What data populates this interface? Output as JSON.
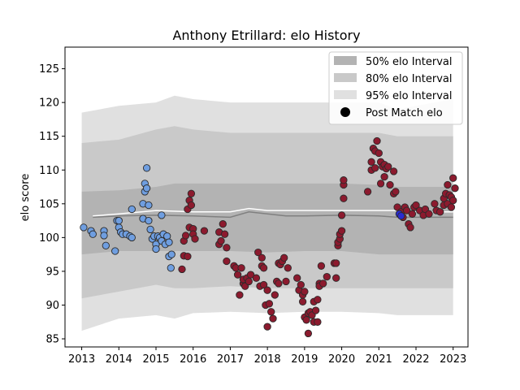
{
  "chart_data": {
    "type": "scatter",
    "title": "Anthony Etrillard: elo History",
    "xlabel": "",
    "ylabel": "elo score",
    "xlim": [
      2012.55,
      2023.4
    ],
    "ylim": [
      83.8,
      128.2
    ],
    "x_ticks": [
      "2013",
      "2014",
      "2015",
      "2016",
      "2017",
      "2018",
      "2019",
      "2020",
      "2021",
      "2022",
      "2023"
    ],
    "y_ticks": [
      "85",
      "90",
      "95",
      "100",
      "105",
      "110",
      "115",
      "120",
      "125"
    ],
    "legend_position": "top-right",
    "legend": [
      {
        "label": "50% elo Interval",
        "color": "#b3b3b3",
        "kind": "patch"
      },
      {
        "label": "80% elo Interval",
        "color": "#c9c9c9",
        "kind": "patch"
      },
      {
        "label": "95% elo Interval",
        "color": "#e0e0e0",
        "kind": "patch"
      },
      {
        "label": "Post Match elo",
        "color": "#000000",
        "kind": "marker"
      }
    ],
    "colors": {
      "early_points": "#6f9ee0",
      "later_points": "#8c1a2e",
      "recent_points": "#2a2ad0",
      "mean_line": "#808080",
      "median_line": "#ffffff"
    },
    "bands": {
      "x": [
        2013.0,
        2014.0,
        2015.0,
        2015.5,
        2016.0,
        2017.0,
        2018.0,
        2019.0,
        2020.0,
        2021.0,
        2021.5,
        2022.0,
        2023.0
      ],
      "band95": {
        "lower": [
          86.2,
          88.0,
          88.5,
          88.0,
          88.8,
          89.0,
          88.8,
          89.0,
          89.0,
          88.8,
          88.5,
          88.5,
          88.5
        ],
        "upper": [
          118.5,
          119.5,
          120.0,
          121.0,
          120.5,
          120.0,
          120.0,
          120.0,
          120.0,
          120.0,
          119.0,
          119.5,
          120.5
        ]
      },
      "band80": {
        "lower": [
          91.0,
          92.0,
          93.0,
          92.5,
          92.5,
          92.8,
          92.5,
          92.5,
          92.5,
          92.5,
          92.5,
          92.5,
          92.5
        ],
        "upper": [
          114.0,
          114.5,
          116.0,
          116.5,
          116.0,
          115.5,
          115.5,
          115.5,
          115.5,
          115.5,
          115.0,
          115.0,
          115.0
        ]
      },
      "band50": {
        "lower": [
          97.5,
          98.0,
          98.0,
          98.0,
          98.0,
          98.0,
          97.8,
          98.0,
          98.0,
          97.5,
          97.5,
          97.5,
          97.5
        ],
        "upper": [
          106.8,
          107.0,
          107.5,
          108.0,
          108.0,
          108.0,
          108.0,
          108.0,
          108.0,
          107.8,
          107.5,
          107.5,
          107.5
        ]
      }
    },
    "mean_line": {
      "x": [
        2013.3,
        2014.0,
        2015.0,
        2016.0,
        2017.0,
        2017.5,
        2018.0,
        2018.5,
        2019.0,
        2020.0,
        2021.0,
        2021.5,
        2022.0,
        2023.0
      ],
      "y": [
        103.0,
        103.2,
        103.3,
        103.2,
        103.0,
        103.8,
        103.5,
        103.2,
        103.2,
        103.3,
        103.2,
        103.0,
        103.0,
        103.0
      ]
    },
    "median_line": {
      "x": [
        2013.3,
        2014.0,
        2015.0,
        2016.0,
        2017.0,
        2017.5,
        2018.0,
        2019.0,
        2020.0,
        2021.0,
        2021.5,
        2022.0,
        2023.0
      ],
      "y": [
        103.2,
        103.5,
        104.0,
        103.8,
        103.8,
        104.3,
        104.0,
        104.0,
        104.0,
        104.0,
        104.0,
        103.8,
        103.8
      ]
    },
    "series": [
      {
        "group": "early",
        "points": [
          [
            2013.05,
            101.5
          ],
          [
            2013.25,
            101.0
          ],
          [
            2013.3,
            100.5
          ],
          [
            2013.6,
            101.0
          ],
          [
            2013.6,
            100.3
          ],
          [
            2013.65,
            98.8
          ],
          [
            2013.9,
            98.0
          ],
          [
            2013.95,
            102.5
          ],
          [
            2014.0,
            101.5
          ],
          [
            2014.0,
            102.5
          ],
          [
            2014.05,
            100.8
          ],
          [
            2014.1,
            100.5
          ],
          [
            2014.2,
            100.5
          ],
          [
            2014.3,
            100.2
          ],
          [
            2014.35,
            104.2
          ],
          [
            2014.35,
            100.0
          ],
          [
            2014.65,
            102.8
          ],
          [
            2014.65,
            105.0
          ],
          [
            2014.7,
            106.8
          ],
          [
            2014.7,
            108.0
          ],
          [
            2014.75,
            107.3
          ],
          [
            2014.75,
            110.3
          ],
          [
            2014.8,
            102.5
          ],
          [
            2014.8,
            104.8
          ],
          [
            2014.85,
            101.2
          ],
          [
            2014.9,
            99.8
          ],
          [
            2014.95,
            100.2
          ],
          [
            2015.0,
            99.0
          ],
          [
            2015.0,
            98.3
          ],
          [
            2015.05,
            100.2
          ],
          [
            2015.1,
            100.0
          ],
          [
            2015.15,
            99.5
          ],
          [
            2015.15,
            103.3
          ],
          [
            2015.2,
            100.5
          ],
          [
            2015.25,
            99.0
          ],
          [
            2015.3,
            100.2
          ],
          [
            2015.35,
            99.3
          ],
          [
            2015.35,
            97.2
          ],
          [
            2015.4,
            95.5
          ],
          [
            2015.42,
            97.5
          ]
        ]
      },
      {
        "group": "later",
        "points": [
          [
            2015.7,
            95.3
          ],
          [
            2015.75,
            97.3
          ],
          [
            2015.75,
            99.5
          ],
          [
            2015.8,
            100.3
          ],
          [
            2015.85,
            97.2
          ],
          [
            2015.85,
            104.2
          ],
          [
            2015.9,
            101.5
          ],
          [
            2015.9,
            105.5
          ],
          [
            2015.95,
            106.5
          ],
          [
            2015.95,
            104.8
          ],
          [
            2016.0,
            101.3
          ],
          [
            2016.0,
            100.5
          ],
          [
            2016.05,
            99.8
          ],
          [
            2016.3,
            101.0
          ],
          [
            2016.7,
            100.8
          ],
          [
            2016.7,
            99.0
          ],
          [
            2016.75,
            99.5
          ],
          [
            2016.8,
            102.0
          ],
          [
            2016.85,
            100.5
          ],
          [
            2016.9,
            98.5
          ],
          [
            2016.9,
            96.5
          ],
          [
            2017.1,
            95.8
          ],
          [
            2017.15,
            95.5
          ],
          [
            2017.2,
            94.5
          ],
          [
            2017.25,
            91.5
          ],
          [
            2017.3,
            95.5
          ],
          [
            2017.35,
            93.2
          ],
          [
            2017.35,
            93.8
          ],
          [
            2017.4,
            92.8
          ],
          [
            2017.45,
            94.0
          ],
          [
            2017.5,
            93.5
          ],
          [
            2017.55,
            94.5
          ],
          [
            2017.7,
            94.0
          ],
          [
            2017.75,
            97.8
          ],
          [
            2017.8,
            92.8
          ],
          [
            2017.85,
            97.0
          ],
          [
            2017.85,
            95.8
          ],
          [
            2017.9,
            95.5
          ],
          [
            2017.9,
            93.0
          ],
          [
            2017.95,
            90.0
          ],
          [
            2018.0,
            86.8
          ],
          [
            2018.0,
            92.2
          ],
          [
            2018.05,
            90.2
          ],
          [
            2018.1,
            89.0
          ],
          [
            2018.15,
            88.0
          ],
          [
            2018.2,
            91.5
          ],
          [
            2018.25,
            93.5
          ],
          [
            2018.3,
            96.2
          ],
          [
            2018.3,
            93.2
          ],
          [
            2018.35,
            96.0
          ],
          [
            2018.4,
            96.5
          ],
          [
            2018.45,
            97.0
          ],
          [
            2018.5,
            93.5
          ],
          [
            2018.55,
            95.5
          ],
          [
            2018.8,
            94.0
          ],
          [
            2018.85,
            92.2
          ],
          [
            2018.9,
            93.0
          ],
          [
            2018.95,
            90.5
          ],
          [
            2018.95,
            91.5
          ],
          [
            2019.0,
            92.0
          ],
          [
            2019.0,
            88.2
          ],
          [
            2019.05,
            87.8
          ],
          [
            2019.1,
            85.8
          ],
          [
            2019.1,
            88.8
          ],
          [
            2019.15,
            89.0
          ],
          [
            2019.2,
            88.5
          ],
          [
            2019.25,
            90.5
          ],
          [
            2019.25,
            87.5
          ],
          [
            2019.3,
            89.2
          ],
          [
            2019.35,
            90.8
          ],
          [
            2019.35,
            87.5
          ],
          [
            2019.4,
            93.2
          ],
          [
            2019.4,
            92.8
          ],
          [
            2019.45,
            95.8
          ],
          [
            2019.5,
            93.2
          ],
          [
            2019.6,
            94.2
          ],
          [
            2019.8,
            96.2
          ],
          [
            2019.85,
            94.0
          ],
          [
            2019.85,
            96.2
          ],
          [
            2019.9,
            98.8
          ],
          [
            2019.9,
            99.3
          ],
          [
            2019.95,
            99.8
          ],
          [
            2019.95,
            100.5
          ],
          [
            2020.0,
            101.0
          ],
          [
            2020.0,
            103.3
          ],
          [
            2020.05,
            105.8
          ],
          [
            2020.05,
            107.8
          ],
          [
            2020.05,
            108.5
          ],
          [
            2020.7,
            106.8
          ],
          [
            2020.8,
            110.0
          ],
          [
            2020.8,
            111.2
          ],
          [
            2020.85,
            113.2
          ],
          [
            2020.9,
            112.8
          ],
          [
            2020.9,
            110.3
          ],
          [
            2020.95,
            114.3
          ],
          [
            2021.0,
            112.5
          ],
          [
            2021.05,
            111.2
          ],
          [
            2021.05,
            108.0
          ],
          [
            2021.1,
            110.5
          ],
          [
            2021.15,
            110.8
          ],
          [
            2021.15,
            109.0
          ],
          [
            2021.2,
            110.2
          ],
          [
            2021.25,
            110.5
          ],
          [
            2021.3,
            107.8
          ],
          [
            2021.4,
            109.8
          ],
          [
            2021.4,
            106.5
          ],
          [
            2021.45,
            106.8
          ],
          [
            2021.5,
            104.5
          ],
          [
            2021.6,
            103.8
          ],
          [
            2021.65,
            103.0
          ],
          [
            2021.7,
            104.5
          ],
          [
            2021.75,
            104.0
          ],
          [
            2021.8,
            102.0
          ],
          [
            2021.85,
            101.5
          ],
          [
            2021.9,
            103.5
          ],
          [
            2021.95,
            104.5
          ],
          [
            2022.0,
            104.8
          ],
          [
            2022.1,
            104.0
          ],
          [
            2022.2,
            103.3
          ],
          [
            2022.25,
            104.2
          ],
          [
            2022.35,
            103.5
          ],
          [
            2022.5,
            105.0
          ],
          [
            2022.55,
            104.0
          ],
          [
            2022.65,
            103.8
          ],
          [
            2022.75,
            105.8
          ],
          [
            2022.75,
            104.8
          ],
          [
            2022.8,
            106.5
          ],
          [
            2022.85,
            107.8
          ],
          [
            2022.85,
            105.0
          ],
          [
            2022.9,
            106.3
          ],
          [
            2022.95,
            104.5
          ],
          [
            2022.95,
            106.0
          ],
          [
            2023.0,
            105.5
          ],
          [
            2023.0,
            108.8
          ],
          [
            2023.05,
            107.3
          ]
        ]
      },
      {
        "group": "recent",
        "points": [
          [
            2021.55,
            103.5
          ],
          [
            2021.6,
            103.2
          ]
        ]
      }
    ]
  }
}
